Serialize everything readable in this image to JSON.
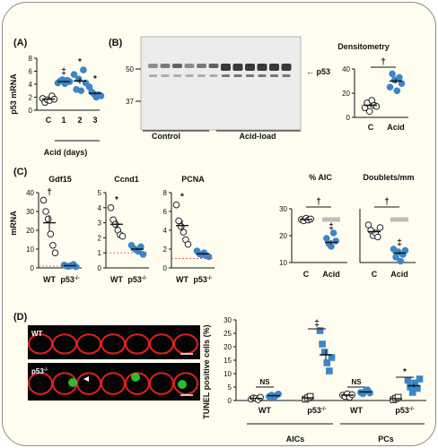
{
  "colors": {
    "background": "#fffdf0",
    "border": "#8a8a8a",
    "filled": "#3d85c6",
    "open": "#ffffff",
    "guide": "#e06060",
    "wt_bar": "#bdbdbd",
    "blot_band": "#1a1a1a",
    "cell_red": "#e02020",
    "cell_green": "#30d030"
  },
  "chart_data": [
    {
      "panel": "A",
      "type": "scatter",
      "ylabel": "p53 mRNA",
      "xlabel": "Acid (days)",
      "categories": [
        "C",
        "1",
        "2",
        "3"
      ],
      "ylim": [
        0,
        8
      ],
      "yticks": [
        0,
        2,
        4,
        6,
        8
      ],
      "markers": [
        "",
        "‡",
        "*",
        "*"
      ],
      "series": [
        {
          "category": "C",
          "style": "open",
          "points": [
            1.8,
            1.2,
            1.6,
            1.5,
            2.2,
            1.7
          ],
          "mean": 1.7
        },
        {
          "category": "1",
          "style": "filled",
          "points": [
            4.2,
            4.5,
            4.7,
            4.1,
            4.6,
            4.4
          ],
          "mean": 4.4
        },
        {
          "category": "2",
          "style": "filled",
          "points": [
            5.5,
            3.2,
            4.8,
            3.0,
            6.2,
            4.2
          ],
          "mean": 4.5
        },
        {
          "category": "3",
          "style": "filled",
          "points": [
            3.6,
            2.8,
            2.5,
            2.0,
            2.4,
            2.2
          ],
          "mean": 2.6
        }
      ]
    },
    {
      "panel": "B-blot",
      "type": "table",
      "marker_labels": [
        "50",
        "37"
      ],
      "band_label": "p53",
      "groups": [
        "Control",
        "Acid-load"
      ]
    },
    {
      "panel": "B-densitometry",
      "type": "scatter",
      "title": "Densitometry",
      "categories": [
        "C",
        "Acid"
      ],
      "ylim": [
        0,
        40
      ],
      "yticks": [
        0,
        20,
        40
      ],
      "marker": "†",
      "series": [
        {
          "category": "C",
          "style": "open",
          "points": [
            8,
            12,
            5,
            14,
            10,
            9
          ],
          "mean": 10
        },
        {
          "category": "Acid",
          "style": "filled",
          "points": [
            25,
            36,
            31,
            22,
            33,
            28
          ],
          "mean": 30
        }
      ]
    },
    {
      "panel": "C-Gdf15",
      "type": "scatter",
      "title": "Gdf15",
      "ylabel": "mRNA",
      "categories": [
        "WT",
        "p53⁻/⁻"
      ],
      "ylim": [
        0,
        40
      ],
      "yticks": [
        0,
        10,
        20,
        30,
        40
      ],
      "guide": 1,
      "marker": "†",
      "series": [
        {
          "category": "WT",
          "style": "open",
          "points": [
            36,
            30,
            26,
            18,
            12,
            8
          ],
          "mean": 24
        },
        {
          "category": "p53",
          "style": "filled",
          "points": [
            1.5,
            1.0,
            0.8,
            1.2,
            1.8,
            0.6
          ],
          "mean": 1.2
        }
      ]
    },
    {
      "panel": "C-Ccnd1",
      "type": "scatter",
      "title": "Ccnd1",
      "categories": [
        "WT",
        "p53⁻/⁻"
      ],
      "ylim": [
        0,
        5
      ],
      "yticks": [
        0,
        1,
        2,
        3,
        4,
        5
      ],
      "guide": 1,
      "marker": "*",
      "series": [
        {
          "category": "WT",
          "style": "open",
          "points": [
            4.0,
            3.2,
            2.9,
            2.5,
            2.2,
            2.1
          ],
          "mean": 2.9
        },
        {
          "category": "p53",
          "style": "filled",
          "points": [
            1.5,
            1.3,
            1.2,
            1.1,
            1.4,
            0.9
          ],
          "mean": 1.25
        }
      ]
    },
    {
      "panel": "C-PCNA",
      "type": "scatter",
      "title": "PCNA",
      "categories": [
        "WT",
        "p53⁻/⁻"
      ],
      "ylim": [
        0,
        8
      ],
      "yticks": [
        0,
        2,
        4,
        6,
        8
      ],
      "guide": 1,
      "marker": "*",
      "series": [
        {
          "category": "WT",
          "style": "open",
          "points": [
            6.7,
            5.0,
            4.4,
            3.8,
            3.0,
            2.5
          ],
          "mean": 4.5
        },
        {
          "category": "p53",
          "style": "filled",
          "points": [
            1.8,
            1.5,
            1.4,
            1.6,
            1.3,
            1.2
          ],
          "mean": 1.5
        }
      ]
    },
    {
      "panel": "C-AIC",
      "type": "scatter",
      "title": "% AIC",
      "categories": [
        "C",
        "Acid"
      ],
      "ylim": [
        10,
        30
      ],
      "yticks": [
        10,
        20,
        30
      ],
      "wt_bar": 26,
      "marker_top": "†",
      "marker_acid": "‡",
      "series": [
        {
          "category": "C",
          "style": "open",
          "points": [
            26,
            25.5,
            26.5,
            25.8,
            26.2
          ],
          "mean": 26
        },
        {
          "category": "Acid",
          "style": "filled",
          "points": [
            19,
            17,
            16,
            21,
            18
          ],
          "mean": 17.5
        }
      ]
    },
    {
      "panel": "C-Doublets",
      "type": "scatter",
      "title": "Doublets/mm",
      "categories": [
        "C",
        "Acid"
      ],
      "ylim": [
        10,
        30
      ],
      "yticks": [
        10,
        20,
        30
      ],
      "wt_bar": 26,
      "marker_top": "†",
      "marker_acid": "‡",
      "series": [
        {
          "category": "C",
          "style": "open",
          "points": [
            24,
            22,
            20,
            21,
            19.5,
            23
          ],
          "mean": 21.5
        },
        {
          "category": "Acid",
          "style": "filled",
          "points": [
            15,
            12,
            14,
            10.5,
            13,
            14.5
          ],
          "mean": 13.5
        }
      ]
    },
    {
      "panel": "D-micrographs",
      "type": "table",
      "labels": [
        "WT",
        "p53⁻/⁻"
      ]
    },
    {
      "panel": "D-TUNEL",
      "type": "scatter",
      "ylabel": "TUNEL positive cells (%)",
      "ylim": [
        0,
        30
      ],
      "yticks": [
        0,
        5,
        10,
        15,
        20,
        25,
        30
      ],
      "group_labels": [
        "AICs",
        "PCs"
      ],
      "sub_labels": [
        "WT",
        "p53⁻/⁻",
        "WT",
        "p53⁻/⁻"
      ],
      "brackets": [
        "NS",
        "‡",
        "NS",
        "*"
      ],
      "series": [
        {
          "group": "AICs",
          "genotype": "WT",
          "condition": "C",
          "style": "open",
          "points": [
            0.5,
            1.0,
            0.8,
            0.3,
            1.2
          ],
          "mean": 0.8
        },
        {
          "group": "AICs",
          "genotype": "WT",
          "condition": "Acid",
          "style": "filled",
          "points": [
            1.5,
            2.0,
            1.2,
            1.8,
            2.4
          ],
          "mean": 1.8
        },
        {
          "group": "AICs",
          "genotype": "p53",
          "condition": "C",
          "style": "open_square",
          "points": [
            0.5,
            1.0,
            1.5
          ],
          "mean": 1.0
        },
        {
          "group": "AICs",
          "genotype": "p53",
          "condition": "Acid",
          "style": "filled_square",
          "points": [
            26,
            21,
            18,
            14,
            11,
            16
          ],
          "mean": 17
        },
        {
          "group": "PCs",
          "genotype": "WT",
          "condition": "C",
          "style": "open",
          "points": [
            2.0,
            1.5,
            2.5,
            1.2,
            2.2
          ],
          "mean": 2.0
        },
        {
          "group": "PCs",
          "genotype": "WT",
          "condition": "Acid",
          "style": "filled",
          "points": [
            3.0,
            2.5,
            3.5,
            4.0,
            2.8
          ],
          "mean": 3.2
        },
        {
          "group": "PCs",
          "genotype": "p53",
          "condition": "C",
          "style": "open_square",
          "points": [
            0.3,
            0.8,
            1.2
          ],
          "mean": 0.7
        },
        {
          "group": "PCs",
          "genotype": "p53",
          "condition": "Acid",
          "style": "filled_square",
          "points": [
            7.5,
            5.0,
            3.0,
            6.5,
            4.5,
            8.0
          ],
          "mean": 5.5
        }
      ]
    }
  ],
  "text": {
    "A": "(A)",
    "B": "(B)",
    "C": "(C)",
    "D": "(D)",
    "p53_mrna": "p53 mRNA",
    "acid_days": "Acid (days)",
    "m50": "50",
    "m37": "37",
    "p53_arrow": "← p53",
    "control": "Control",
    "acidload": "Acid-load",
    "densito": "Densitometry",
    "c": "C",
    "acid": "Acid",
    "mrna": "mRNA",
    "gdf15": "Gdf15",
    "ccnd1": "Ccnd1",
    "pcna": "PCNA",
    "wt": "WT",
    "p53ko": "p53",
    "ko_sup": "-/-",
    "aic": "% AIC",
    "doublets": "Doublets/mm",
    "tunel": "TUNEL positive cells (%)",
    "aics": "AICs",
    "pcs": "PCs",
    "img_wt": "WT",
    "img_ko": "p53",
    "img_ko_sup": "-/-",
    "ns": "NS"
  }
}
